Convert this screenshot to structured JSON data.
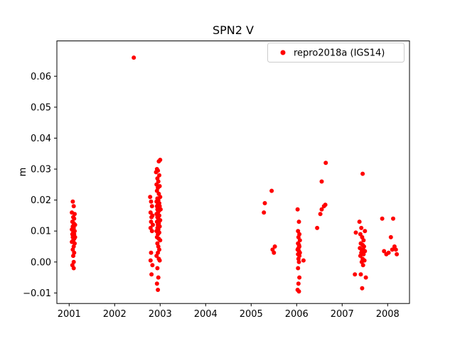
{
  "figure": {
    "background": "#ffffff"
  },
  "chart_data": {
    "type": "scatter",
    "title": "SPN2 V",
    "xlabel": "",
    "ylabel": "m",
    "xlim": [
      2000.73,
      2008.48
    ],
    "ylim": [
      -0.0134,
      0.0714
    ],
    "xticks": [
      2001,
      2002,
      2003,
      2004,
      2005,
      2006,
      2007,
      2008
    ],
    "yticks": [
      -0.01,
      0.0,
      0.01,
      0.02,
      0.03,
      0.04,
      0.05,
      0.06
    ],
    "grid": false,
    "legend": {
      "position": "upper right",
      "entries": [
        {
          "label": "repro2018a (IGS14)",
          "color": "#ff0000",
          "marker": "dot"
        }
      ]
    },
    "series": [
      {
        "name": "repro2018a (IGS14)",
        "color": "#ff0000",
        "marker_radius": 3,
        "points": [
          [
            2001.08,
            0.0195
          ],
          [
            2001.1,
            0.018
          ],
          [
            2001.06,
            0.016
          ],
          [
            2001.12,
            0.0155
          ],
          [
            2001.09,
            0.0145
          ],
          [
            2001.11,
            0.014
          ],
          [
            2001.07,
            0.013
          ],
          [
            2001.1,
            0.0125
          ],
          [
            2001.13,
            0.012
          ],
          [
            2001.08,
            0.0115
          ],
          [
            2001.1,
            0.011
          ],
          [
            2001.06,
            0.0105
          ],
          [
            2001.12,
            0.01
          ],
          [
            2001.09,
            0.0095
          ],
          [
            2001.11,
            0.009
          ],
          [
            2001.07,
            0.009
          ],
          [
            2001.1,
            0.0085
          ],
          [
            2001.13,
            0.008
          ],
          [
            2001.08,
            0.008
          ],
          [
            2001.11,
            0.0075
          ],
          [
            2001.09,
            0.007
          ],
          [
            2001.06,
            0.0065
          ],
          [
            2001.12,
            0.006
          ],
          [
            2001.1,
            0.005
          ],
          [
            2001.08,
            0.004
          ],
          [
            2001.11,
            0.003
          ],
          [
            2001.09,
            0.002
          ],
          [
            2001.1,
            0.0
          ],
          [
            2001.07,
            -0.001
          ],
          [
            2001.1,
            -0.002
          ],
          [
            2002.42,
            0.066
          ],
          [
            2002.78,
            0.021
          ],
          [
            2002.8,
            0.0195
          ],
          [
            2002.82,
            0.018
          ],
          [
            2002.79,
            0.016
          ],
          [
            2002.83,
            0.015
          ],
          [
            2002.81,
            0.0145
          ],
          [
            2002.8,
            0.013
          ],
          [
            2002.84,
            0.012
          ],
          [
            2002.79,
            0.011
          ],
          [
            2002.82,
            0.01
          ],
          [
            2002.8,
            0.003
          ],
          [
            2002.83,
            -0.001
          ],
          [
            2002.81,
            -0.004
          ],
          [
            2002.79,
            0.0005
          ],
          [
            2003.0,
            0.033
          ],
          [
            2002.97,
            0.0325
          ],
          [
            2002.93,
            0.03
          ],
          [
            2002.95,
            0.0295
          ],
          [
            2002.91,
            0.029
          ],
          [
            2002.98,
            0.028
          ],
          [
            2002.94,
            0.027
          ],
          [
            2002.96,
            0.026
          ],
          [
            2002.92,
            0.025
          ],
          [
            2002.99,
            0.0245
          ],
          [
            2002.95,
            0.024
          ],
          [
            2002.93,
            0.023
          ],
          [
            2002.97,
            0.022
          ],
          [
            2003.0,
            0.021
          ],
          [
            2002.94,
            0.0205
          ],
          [
            2002.96,
            0.02
          ],
          [
            2002.92,
            0.0195
          ],
          [
            2002.98,
            0.019
          ],
          [
            2002.95,
            0.0185
          ],
          [
            2002.93,
            0.018
          ],
          [
            2002.99,
            0.018
          ],
          [
            2002.96,
            0.0175
          ],
          [
            2002.94,
            0.017
          ],
          [
            2003.01,
            0.017
          ],
          [
            2002.97,
            0.0165
          ],
          [
            2002.95,
            0.016
          ],
          [
            2002.92,
            0.0155
          ],
          [
            2002.98,
            0.015
          ],
          [
            2002.94,
            0.0145
          ],
          [
            2002.96,
            0.014
          ],
          [
            2003.0,
            0.0135
          ],
          [
            2002.93,
            0.013
          ],
          [
            2002.97,
            0.0125
          ],
          [
            2002.95,
            0.012
          ],
          [
            2002.99,
            0.0115
          ],
          [
            2002.94,
            0.011
          ],
          [
            2002.96,
            0.0105
          ],
          [
            2002.92,
            0.01
          ],
          [
            2002.98,
            0.0095
          ],
          [
            2002.95,
            0.009
          ],
          [
            2002.93,
            0.008
          ],
          [
            2002.97,
            0.0075
          ],
          [
            2003.0,
            0.007
          ],
          [
            2002.94,
            0.006
          ],
          [
            2002.96,
            0.005
          ],
          [
            2002.98,
            0.004
          ],
          [
            2002.95,
            0.003
          ],
          [
            2002.92,
            0.002
          ],
          [
            2002.97,
            0.001
          ],
          [
            2002.99,
            0.0005
          ],
          [
            2002.94,
            -0.002
          ],
          [
            2002.96,
            -0.005
          ],
          [
            2002.93,
            -0.007
          ],
          [
            2002.95,
            -0.009
          ],
          [
            2005.28,
            0.016
          ],
          [
            2005.3,
            0.019
          ],
          [
            2005.45,
            0.023
          ],
          [
            2005.47,
            0.004
          ],
          [
            2005.5,
            0.003
          ],
          [
            2005.52,
            0.005
          ],
          [
            2006.02,
            0.017
          ],
          [
            2006.05,
            0.013
          ],
          [
            2006.03,
            0.01
          ],
          [
            2006.06,
            0.009
          ],
          [
            2006.04,
            0.008
          ],
          [
            2006.07,
            0.007
          ],
          [
            2006.03,
            0.006
          ],
          [
            2006.05,
            0.0055
          ],
          [
            2006.06,
            0.005
          ],
          [
            2006.04,
            0.0045
          ],
          [
            2006.02,
            0.004
          ],
          [
            2006.05,
            0.0035
          ],
          [
            2006.07,
            0.003
          ],
          [
            2006.03,
            0.0025
          ],
          [
            2006.06,
            0.002
          ],
          [
            2006.04,
            0.001
          ],
          [
            2006.05,
            0.0
          ],
          [
            2006.03,
            -0.002
          ],
          [
            2006.06,
            -0.005
          ],
          [
            2006.04,
            -0.007
          ],
          [
            2006.02,
            -0.009
          ],
          [
            2006.05,
            -0.0095
          ],
          [
            2006.15,
            0.0005
          ],
          [
            2006.45,
            0.011
          ],
          [
            2006.52,
            0.0155
          ],
          [
            2006.55,
            0.017
          ],
          [
            2006.6,
            0.018
          ],
          [
            2006.63,
            0.0185
          ],
          [
            2006.64,
            0.032
          ],
          [
            2006.55,
            0.026
          ],
          [
            2007.45,
            0.0285
          ],
          [
            2007.38,
            0.013
          ],
          [
            2007.42,
            0.011
          ],
          [
            2007.5,
            0.01
          ],
          [
            2007.3,
            0.0095
          ],
          [
            2007.4,
            0.009
          ],
          [
            2007.44,
            0.008
          ],
          [
            2007.47,
            0.007
          ],
          [
            2007.41,
            0.006
          ],
          [
            2007.45,
            0.0055
          ],
          [
            2007.48,
            0.005
          ],
          [
            2007.39,
            0.0045
          ],
          [
            2007.43,
            0.004
          ],
          [
            2007.46,
            0.004
          ],
          [
            2007.5,
            0.0035
          ],
          [
            2007.42,
            0.003
          ],
          [
            2007.44,
            0.003
          ],
          [
            2007.47,
            0.0025
          ],
          [
            2007.4,
            0.002
          ],
          [
            2007.45,
            0.001
          ],
          [
            2007.49,
            0.0005
          ],
          [
            2007.43,
            0.0
          ],
          [
            2007.46,
            -0.001
          ],
          [
            2007.41,
            -0.004
          ],
          [
            2007.28,
            -0.004
          ],
          [
            2007.52,
            -0.005
          ],
          [
            2007.44,
            -0.0085
          ],
          [
            2007.88,
            0.014
          ],
          [
            2007.92,
            0.0035
          ],
          [
            2007.97,
            0.0025
          ],
          [
            2008.02,
            0.003
          ],
          [
            2008.07,
            0.008
          ],
          [
            2008.12,
            0.014
          ],
          [
            2008.15,
            0.005
          ],
          [
            2008.18,
            0.004
          ],
          [
            2008.2,
            0.0025
          ],
          [
            2008.1,
            0.004
          ]
        ]
      }
    ]
  },
  "colors": {
    "marker": "#ff0000",
    "axes": "#000000",
    "legend_border": "#cccccc",
    "background": "#ffffff"
  }
}
